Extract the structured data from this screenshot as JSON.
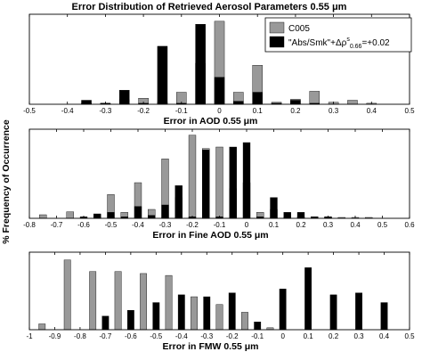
{
  "figure": {
    "title": "Error Distribution of Retrieved Aerosol Parameters 0.55 μm",
    "ylabel": "% Frequency of Occurrence"
  },
  "legend": {
    "gray_label": "C005",
    "black_label": "\"Abs/Smk\"+Δρ",
    "black_sup": "s",
    "black_sub": "0.66",
    "black_suffix": "=+0.02"
  },
  "colors": {
    "gray": "#999999",
    "black": "#000000"
  },
  "chart_data": [
    {
      "type": "bar",
      "xlabel": "Error in AOD 0.55 μm",
      "xlim": [
        -0.5,
        0.5
      ],
      "ylim": [
        0,
        45
      ],
      "bin_width": 0.05,
      "xticks": [
        "-0.5",
        "-0.4",
        "-0.3",
        "-0.2",
        "-0.1",
        "0",
        "0.1",
        "0.2",
        "0.3",
        "0.4",
        "0.5"
      ],
      "series": [
        {
          "name": "C005",
          "color": "gray",
          "x": [
            -0.35,
            -0.3,
            -0.25,
            -0.2,
            -0.15,
            -0.1,
            -0.05,
            0.0,
            0.05,
            0.1,
            0.15,
            0.2,
            0.25,
            0.3,
            0.35,
            0.4
          ],
          "values": [
            0.5,
            0.5,
            2.5,
            3,
            1,
            6,
            20.5,
            41.5,
            6,
            19.5,
            1,
            2.5,
            6.5,
            1,
            2,
            0.5
          ]
        },
        {
          "name": "\"Abs/Smk\"+Δρs0.66=+0.02",
          "color": "black",
          "x": [
            -0.35,
            -0.3,
            -0.25,
            -0.2,
            -0.15,
            -0.1,
            -0.05,
            0.0,
            0.05,
            0.1,
            0.15,
            0.2,
            0.25
          ],
          "values": [
            2,
            0.5,
            7,
            0.5,
            29,
            0.5,
            40,
            13.5,
            1.5,
            6,
            0.5,
            2,
            0.5
          ]
        }
      ]
    },
    {
      "type": "bar",
      "xlabel": "Error in Fine AOD 0.55 μm",
      "xlim": [
        -0.8,
        0.6
      ],
      "ylim": [
        0,
        30
      ],
      "bin_width": 0.05,
      "xticks": [
        "-0.8",
        "-0.7",
        "-0.6",
        "-0.5",
        "-0.4",
        "-0.3",
        "-0.2",
        "-0.1",
        "0",
        "0.1",
        "0.2",
        "0.3",
        "0.4",
        "0.5",
        "0.6"
      ],
      "series": [
        {
          "name": "C005",
          "color": "gray",
          "x": [
            -0.75,
            -0.65,
            -0.55,
            -0.5,
            -0.45,
            -0.4,
            -0.35,
            -0.3,
            -0.25,
            -0.2,
            -0.15,
            -0.1,
            -0.05,
            0.0,
            0.05,
            0.1,
            0.15,
            0.2,
            0.25,
            0.3,
            0.35,
            0.4,
            0.45
          ],
          "values": [
            1.2,
            2.2,
            1,
            8,
            2,
            12,
            3,
            20,
            7,
            28,
            23.5,
            24,
            10,
            12,
            2,
            3,
            0.5,
            0.5,
            0.5,
            0.5,
            0.3,
            0.3,
            0.3
          ]
        },
        {
          "name": "\"Abs/Smk\"+Δρs0.66=+0.02",
          "color": "black",
          "x": [
            -0.6,
            -0.55,
            -0.5,
            -0.45,
            -0.4,
            -0.35,
            -0.3,
            -0.25,
            -0.2,
            -0.15,
            -0.1,
            -0.05,
            0.0,
            0.05,
            0.1,
            0.15,
            0.2,
            0.25,
            0.3
          ],
          "values": [
            0.5,
            1.5,
            2,
            0.5,
            4,
            1,
            4.5,
            11,
            0.5,
            23,
            0.5,
            24,
            25.5,
            0.5,
            7,
            2,
            2,
            0.5,
            0.5
          ]
        }
      ]
    },
    {
      "type": "bar",
      "xlabel": "Error in FMW 0.55 μm",
      "xlim": [
        -1,
        0.5
      ],
      "ylim": [
        0,
        20
      ],
      "bin_width": 0.05,
      "xticks": [
        "-1",
        "-0.9",
        "-0.8",
        "-0.7",
        "-0.6",
        "-0.5",
        "-0.4",
        "-0.3",
        "-0.2",
        "-0.1",
        "0",
        "0.1",
        "0.2",
        "0.3",
        "0.4",
        "0.5"
      ],
      "series": [
        {
          "name": "C005",
          "color": "gray",
          "x": [
            -0.95,
            -0.85,
            -0.75,
            -0.65,
            -0.55,
            -0.45,
            -0.35,
            -0.25,
            -0.15,
            -0.05
          ],
          "values": [
            1.5,
            18,
            15,
            15,
            14.5,
            14,
            8.5,
            6.5,
            4.5,
            0.5
          ]
        },
        {
          "name": "\"Abs/Smk\"+Δρs0.66=+0.02",
          "color": "black",
          "x": [
            -0.7,
            -0.6,
            -0.5,
            -0.4,
            -0.3,
            -0.2,
            -0.1,
            0.0,
            0.1,
            0.2,
            0.3,
            0.4
          ],
          "values": [
            3.5,
            5,
            7,
            9,
            8.5,
            9.5,
            2,
            10.5,
            16,
            9,
            9.5,
            7
          ]
        }
      ]
    }
  ]
}
